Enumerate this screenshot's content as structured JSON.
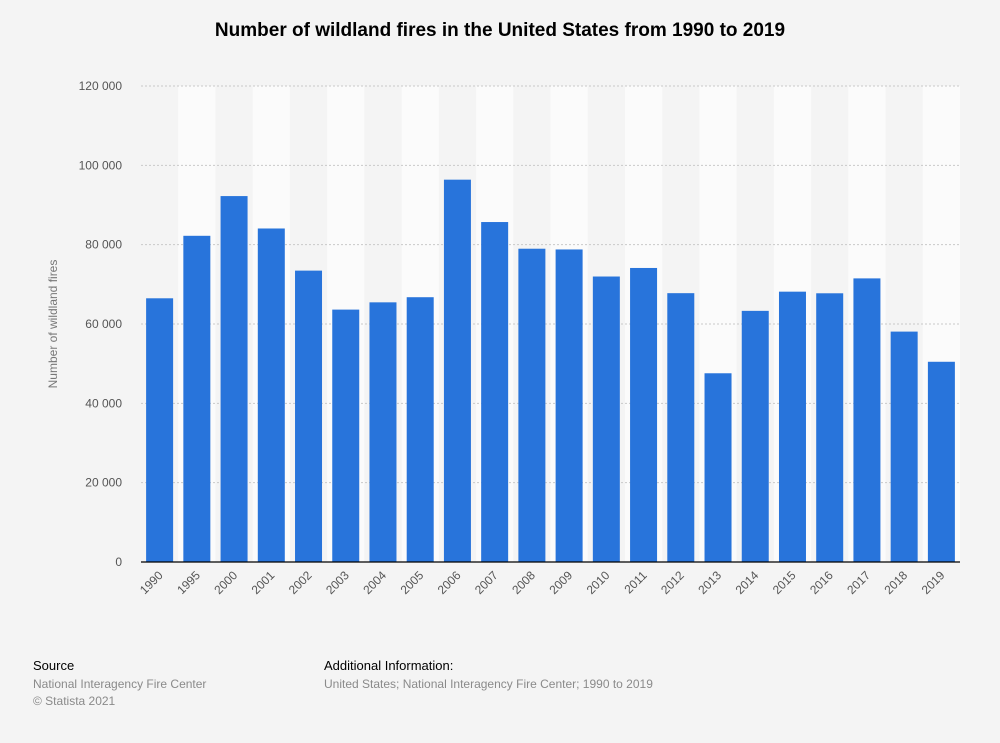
{
  "chart_data": {
    "type": "bar",
    "title": "Number of wildland fires in the United States from 1990 to 2019",
    "ylabel": "Number of wildland fires",
    "xlabel": "",
    "categories": [
      "1990",
      "1995",
      "2000",
      "2001",
      "2002",
      "2003",
      "2004",
      "2005",
      "2006",
      "2007",
      "2008",
      "2009",
      "2010",
      "2011",
      "2012",
      "2013",
      "2014",
      "2015",
      "2016",
      "2017",
      "2018",
      "2019"
    ],
    "values": [
      66481,
      82234,
      92250,
      84079,
      73457,
      63629,
      65461,
      66753,
      96385,
      85705,
      78979,
      78792,
      71971,
      74126,
      67774,
      47579,
      63312,
      68151,
      67743,
      71499,
      58083,
      50477
    ],
    "ylim": [
      0,
      120000
    ],
    "yticks": [
      0,
      20000,
      40000,
      60000,
      80000,
      100000,
      120000
    ],
    "ytick_labels": [
      "0",
      "20 000",
      "40 000",
      "60 000",
      "80 000",
      "100 000",
      "120 000"
    ],
    "grid": true,
    "bar_color": "#2874db"
  },
  "footer": {
    "source_heading": "Source",
    "source_lines": [
      "National Interagency Fire Center",
      "© Statista 2021"
    ],
    "info_heading": "Additional Information:",
    "info_text": "United States; National Interagency Fire Center; 1990 to 2019"
  }
}
